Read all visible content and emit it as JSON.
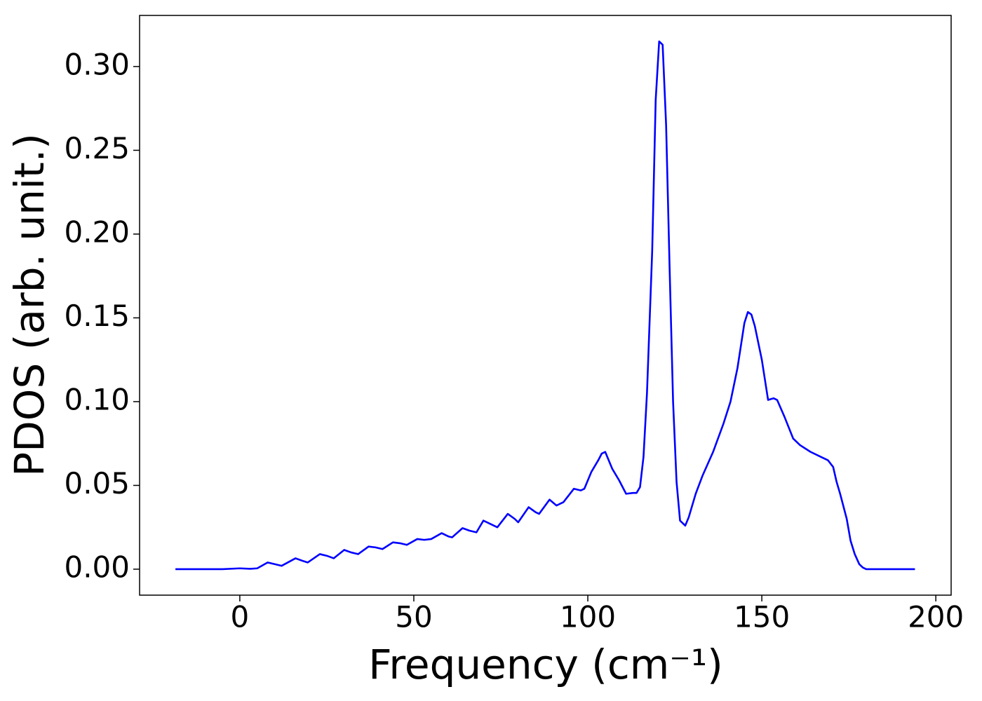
{
  "chart_data": {
    "type": "line",
    "x_label": "Frequency (cm⁻¹)",
    "y_label": "PDOS (arb. unit.)",
    "x": [
      -18.5,
      -5,
      0,
      3,
      5,
      8,
      10,
      12,
      16,
      18,
      19.5,
      23,
      25,
      27,
      30,
      32,
      34,
      37,
      39,
      41,
      44,
      46,
      48,
      51,
      53,
      55,
      58,
      60,
      61,
      64,
      66,
      68,
      70,
      72,
      74,
      77,
      79,
      80,
      83,
      85,
      86,
      89,
      91,
      93,
      96,
      98,
      99,
      101,
      103,
      104,
      105,
      107,
      109,
      111,
      113,
      114,
      115,
      116,
      117,
      118.5,
      119.5,
      120.5,
      121.5,
      122.5,
      123.5,
      124.5,
      125.5,
      126.5,
      128,
      129,
      131,
      133,
      136,
      139,
      141,
      143,
      145,
      146,
      147,
      148,
      150,
      151.8,
      153.4,
      154.4,
      156.5,
      159,
      161,
      164,
      167,
      169,
      170.5,
      171.5,
      172.5,
      174.4,
      175.5,
      176.7,
      178,
      179,
      180,
      194
    ],
    "series": [
      {
        "name": "PDOS",
        "color": "#0000ff",
        "values": [
          0,
          0,
          0.0005,
          0.0002,
          0.0005,
          0.004,
          0.003,
          0.002,
          0.0065,
          0.005,
          0.004,
          0.009,
          0.008,
          0.0065,
          0.0115,
          0.01,
          0.009,
          0.0135,
          0.013,
          0.012,
          0.016,
          0.0155,
          0.0145,
          0.018,
          0.0175,
          0.018,
          0.0215,
          0.0195,
          0.019,
          0.0245,
          0.023,
          0.022,
          0.029,
          0.027,
          0.025,
          0.033,
          0.03,
          0.028,
          0.037,
          0.034,
          0.033,
          0.0415,
          0.038,
          0.04,
          0.048,
          0.047,
          0.048,
          0.058,
          0.065,
          0.069,
          0.07,
          0.06,
          0.053,
          0.045,
          0.0455,
          0.0455,
          0.049,
          0.067,
          0.105,
          0.19,
          0.28,
          0.315,
          0.313,
          0.265,
          0.18,
          0.1,
          0.052,
          0.029,
          0.026,
          0.031,
          0.045,
          0.056,
          0.07,
          0.087,
          0.1,
          0.12,
          0.147,
          0.1535,
          0.152,
          0.145,
          0.125,
          0.101,
          0.102,
          0.101,
          0.091,
          0.078,
          0.074,
          0.07,
          0.067,
          0.065,
          0.061,
          0.052,
          0.045,
          0.03,
          0.017,
          0.009,
          0.003,
          0.001,
          0,
          0
        ]
      }
    ],
    "xlim": [
      -28.8,
      204.4
    ],
    "ylim": [
      -0.0155,
      0.3305
    ],
    "xticks": [
      0,
      50,
      100,
      150,
      200
    ],
    "yticks": [
      {
        "value": 0,
        "label": "0.00"
      },
      {
        "value": 0.05,
        "label": "0.05"
      },
      {
        "value": 0.1,
        "label": "0.10"
      },
      {
        "value": 0.15,
        "label": "0.15"
      },
      {
        "value": 0.2,
        "label": "0.20"
      },
      {
        "value": 0.25,
        "label": "0.25"
      },
      {
        "value": 0.3,
        "label": "0.30"
      }
    ],
    "grid": false
  }
}
